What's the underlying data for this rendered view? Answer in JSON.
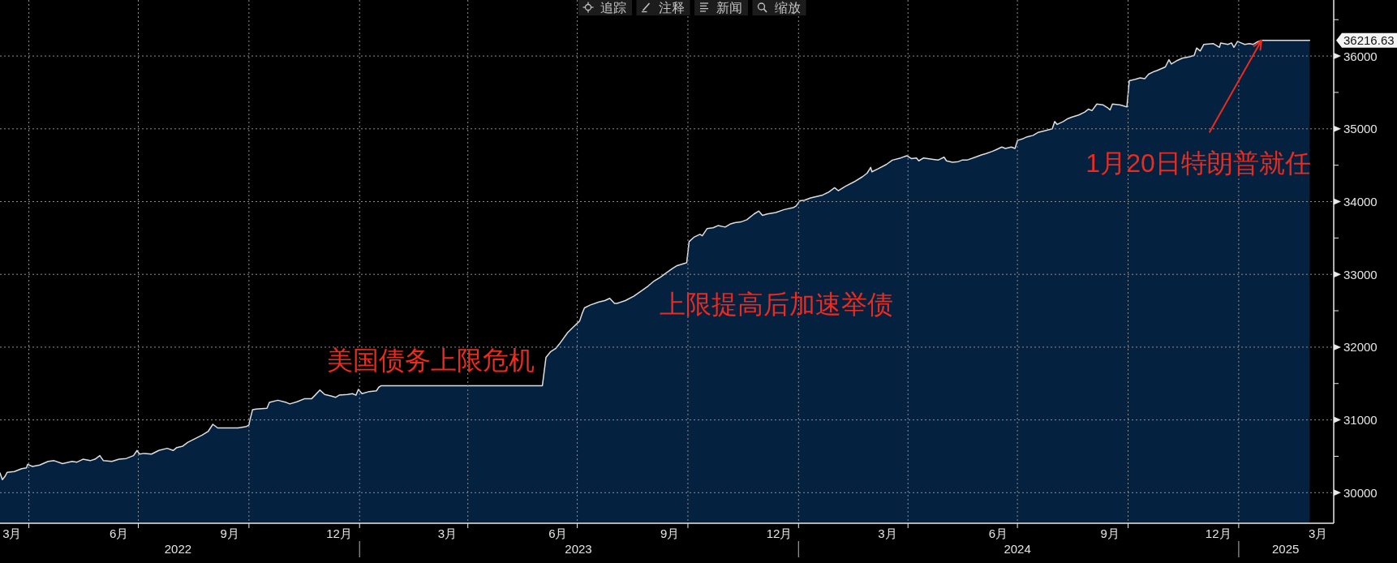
{
  "chart_data": {
    "type": "area",
    "color": "#04213f",
    "x": [
      "2022-03-08",
      "2022-03-10",
      "2022-03-12",
      "2022-03-14",
      "2022-03-20",
      "2022-03-26",
      "2022-03-30",
      "2022-03-31",
      "2022-04-04",
      "2022-04-10",
      "2022-04-17",
      "2022-04-22",
      "2022-04-29",
      "2022-05-07",
      "2022-05-11",
      "2022-05-16",
      "2022-05-22",
      "2022-05-26",
      "2022-05-30",
      "2022-06-02",
      "2022-06-09",
      "2022-06-15",
      "2022-06-21",
      "2022-06-27",
      "2022-06-30",
      "2022-07-02",
      "2022-07-06",
      "2022-07-12",
      "2022-07-18",
      "2022-07-25",
      "2022-07-30",
      "2022-08-02",
      "2022-08-07",
      "2022-08-11",
      "2022-08-17",
      "2022-08-23",
      "2022-08-28",
      "2022-09-01",
      "2022-09-05",
      "2022-09-16",
      "2022-09-22",
      "2022-09-29",
      "2022-10-01",
      "2022-10-02",
      "2022-10-04",
      "2022-10-07",
      "2022-10-16",
      "2022-10-18",
      "2022-10-25",
      "2022-11-01",
      "2022-11-04",
      "2022-11-10",
      "2022-11-16",
      "2022-11-22",
      "2022-11-25",
      "2022-11-29",
      "2022-12-03",
      "2022-12-08",
      "2022-12-12",
      "2022-12-15",
      "2022-12-22",
      "2022-12-26",
      "2022-12-29",
      "2022-12-31",
      "2023-01-03",
      "2023-01-09",
      "2023-01-15",
      "2023-01-17",
      "2023-01-19",
      "2023-06-02",
      "2023-06-05",
      "2023-06-09",
      "2023-06-13",
      "2023-06-16",
      "2023-06-23",
      "2023-06-28",
      "2023-07-03",
      "2023-07-05",
      "2023-07-07",
      "2023-07-12",
      "2023-07-19",
      "2023-07-24",
      "2023-07-28",
      "2023-08-01",
      "2023-08-03",
      "2023-08-10",
      "2023-08-17",
      "2023-08-24",
      "2023-08-29",
      "2023-09-03",
      "2023-09-08",
      "2023-09-13",
      "2023-09-18",
      "2023-09-22",
      "2023-09-28",
      "2023-09-30",
      "2023-10-02",
      "2023-10-06",
      "2023-10-11",
      "2023-10-13",
      "2023-10-17",
      "2023-10-22",
      "2023-10-26",
      "2023-11-01",
      "2023-11-05",
      "2023-11-09",
      "2023-11-14",
      "2023-11-19",
      "2023-11-25",
      "2023-11-29",
      "2023-12-02",
      "2023-12-06",
      "2023-12-13",
      "2023-12-20",
      "2023-12-28",
      "2023-12-30",
      "2024-01-02",
      "2024-01-06",
      "2024-01-11",
      "2024-01-16",
      "2024-01-21",
      "2024-01-26",
      "2024-01-31",
      "2024-02-03",
      "2024-02-09",
      "2024-02-16",
      "2024-02-23",
      "2024-02-27",
      "2024-03-01",
      "2024-03-02",
      "2024-03-07",
      "2024-03-14",
      "2024-03-19",
      "2024-03-26",
      "2024-03-31",
      "2024-04-04",
      "2024-04-08",
      "2024-04-10",
      "2024-04-14",
      "2024-04-22",
      "2024-04-26",
      "2024-05-01",
      "2024-05-03",
      "2024-05-08",
      "2024-05-13",
      "2024-05-16",
      "2024-05-20",
      "2024-05-27",
      "2024-06-01",
      "2024-06-05",
      "2024-06-10",
      "2024-06-13",
      "2024-06-18",
      "2024-06-21",
      "2024-06-26",
      "2024-06-29",
      "2024-07-01",
      "2024-07-05",
      "2024-07-09",
      "2024-07-14",
      "2024-07-18",
      "2024-07-23",
      "2024-07-30",
      "2024-08-01",
      "2024-08-03",
      "2024-08-08",
      "2024-08-12",
      "2024-08-15",
      "2024-08-21",
      "2024-08-26",
      "2024-08-29",
      "2024-09-01",
      "2024-09-05",
      "2024-09-10",
      "2024-09-14",
      "2024-09-16",
      "2024-09-18",
      "2024-09-24",
      "2024-09-26",
      "2024-09-30",
      "2024-10-02",
      "2024-10-07",
      "2024-10-11",
      "2024-10-15",
      "2024-10-18",
      "2024-10-23",
      "2024-10-25",
      "2024-11-01",
      "2024-11-04",
      "2024-11-06",
      "2024-11-11",
      "2024-11-15",
      "2024-11-21",
      "2024-11-25",
      "2024-11-27",
      "2024-11-30",
      "2024-12-03",
      "2024-12-11",
      "2024-12-16",
      "2024-12-17",
      "2024-12-23",
      "2024-12-26",
      "2024-12-28",
      "2024-12-31",
      "2025-01-03",
      "2025-01-06",
      "2025-01-10",
      "2025-01-13",
      "2025-01-16",
      "2025-01-19",
      "2025-01-20",
      "2025-03-01"
    ],
    "values": [
      30270,
      30180,
      30220,
      30280,
      30290,
      30330,
      30340,
      30390,
      30360,
      30380,
      30430,
      30440,
      30400,
      30430,
      30420,
      30460,
      30440,
      30460,
      30510,
      30440,
      30430,
      30460,
      30470,
      30510,
      30580,
      30530,
      30540,
      30530,
      30580,
      30610,
      30580,
      30620,
      30640,
      30690,
      30740,
      30790,
      30840,
      30940,
      30890,
      30890,
      30890,
      30910,
      30930,
      31010,
      31140,
      31150,
      31160,
      31240,
      31270,
      31240,
      31220,
      31250,
      31290,
      31290,
      31340,
      31410,
      31350,
      31330,
      31310,
      31340,
      31350,
      31360,
      31340,
      31420,
      31360,
      31390,
      31400,
      31450,
      31470,
      31470,
      31860,
      31940,
      31980,
      32040,
      32200,
      32280,
      32360,
      32460,
      32540,
      32580,
      32620,
      32640,
      32670,
      32600,
      32600,
      32640,
      32700,
      32780,
      32840,
      32910,
      32960,
      33020,
      33080,
      33120,
      33150,
      33160,
      33450,
      33510,
      33550,
      33530,
      33630,
      33640,
      33670,
      33650,
      33690,
      33710,
      33720,
      33750,
      33830,
      33870,
      33810,
      33830,
      33850,
      33890,
      33920,
      33940,
      34010,
      34020,
      34050,
      34070,
      34090,
      34130,
      34190,
      34150,
      34210,
      34270,
      34340,
      34390,
      34470,
      34410,
      34450,
      34510,
      34570,
      34600,
      34630,
      34590,
      34600,
      34560,
      34600,
      34580,
      34570,
      34610,
      34560,
      34540,
      34550,
      34570,
      34570,
      34610,
      34640,
      34660,
      34690,
      34710,
      34750,
      34730,
      34750,
      34730,
      34840,
      34860,
      34890,
      34910,
      34950,
      34970,
      35000,
      35100,
      35060,
      35100,
      35140,
      35160,
      35190,
      35230,
      35270,
      35250,
      35340,
      35330,
      35290,
      35260,
      35340,
      35330,
      35320,
      35300,
      35660,
      35680,
      35700,
      35690,
      35750,
      35790,
      35800,
      35850,
      35950,
      35890,
      35940,
      35970,
      35990,
      36010,
      36110,
      36070,
      36160,
      36170,
      36120,
      36180,
      36160,
      36180,
      36120,
      36200,
      36180,
      36160,
      36170,
      36160,
      36190,
      36210,
      36216.63,
      36216.63
    ],
    "xlim": [
      "2022-03-08",
      "2025-03-21"
    ],
    "xticks": [
      {
        "value": "2022-03-18",
        "label": "3月"
      },
      {
        "value": "2022-04-01",
        "label": null
      },
      {
        "value": "2022-06-15",
        "label": "6月"
      },
      {
        "value": "2022-07-01",
        "label": null
      },
      {
        "value": "2022-09-15",
        "label": "9月"
      },
      {
        "value": "2022-10-01",
        "label": null
      },
      {
        "value": "2022-12-15",
        "label": "12月"
      },
      {
        "value": "2023-01-01",
        "label": null
      },
      {
        "value": "2023-03-15",
        "label": "3月"
      },
      {
        "value": "2023-04-01",
        "label": null
      },
      {
        "value": "2023-06-15",
        "label": "6月"
      },
      {
        "value": "2023-07-01",
        "label": null
      },
      {
        "value": "2023-09-16",
        "label": "9月"
      },
      {
        "value": "2023-10-01",
        "label": null
      },
      {
        "value": "2023-12-16",
        "label": "12月"
      },
      {
        "value": "2024-01-01",
        "label": null
      },
      {
        "value": "2024-03-15",
        "label": "3月"
      },
      {
        "value": "2024-04-01",
        "label": null
      },
      {
        "value": "2024-06-15",
        "label": "6月"
      },
      {
        "value": "2024-07-01",
        "label": null
      },
      {
        "value": "2024-09-16",
        "label": "9月"
      },
      {
        "value": "2024-10-01",
        "label": null
      },
      {
        "value": "2024-12-15",
        "label": "12月"
      },
      {
        "value": "2025-01-01",
        "label": null
      },
      {
        "value": "2025-03-08",
        "label": "3月"
      }
    ],
    "x2lim": [
      "2022-03-08",
      "2025-03-21"
    ],
    "x2ticks": [
      {
        "value": "2022-08-03",
        "label": "2022"
      },
      {
        "value": "2023-01-01",
        "label": null
      },
      {
        "value": "2023-07-02",
        "label": "2023"
      },
      {
        "value": "2024-01-01",
        "label": null
      },
      {
        "value": "2024-07-01",
        "label": "2024"
      },
      {
        "value": "2025-01-01",
        "label": null
      },
      {
        "value": "2025-02-09",
        "label": "2025"
      }
    ],
    "ylim": [
      29580,
      36770
    ],
    "yticks": [
      30000,
      {
        "value": 30500,
        "label": null
      },
      31000,
      {
        "value": 31500,
        "label": null
      },
      32000,
      {
        "value": 32500,
        "label": null
      },
      33000,
      {
        "value": 33500,
        "label": null
      },
      34000,
      {
        "value": 34500,
        "label": null
      },
      35000,
      {
        "value": 35500,
        "label": null
      },
      36000,
      36216.63,
      {
        "value": 36500,
        "label": null
      }
    ],
    "grid": true,
    "annotations": [
      "美国债务上限危机",
      "上限提高后加速举债",
      {
        "text": "1月20日特朗普就任",
        "x": "2025-01-20",
        "y": 36216.63
      },
      "追踪",
      "注释",
      "新闻",
      "缩放"
    ]
  }
}
